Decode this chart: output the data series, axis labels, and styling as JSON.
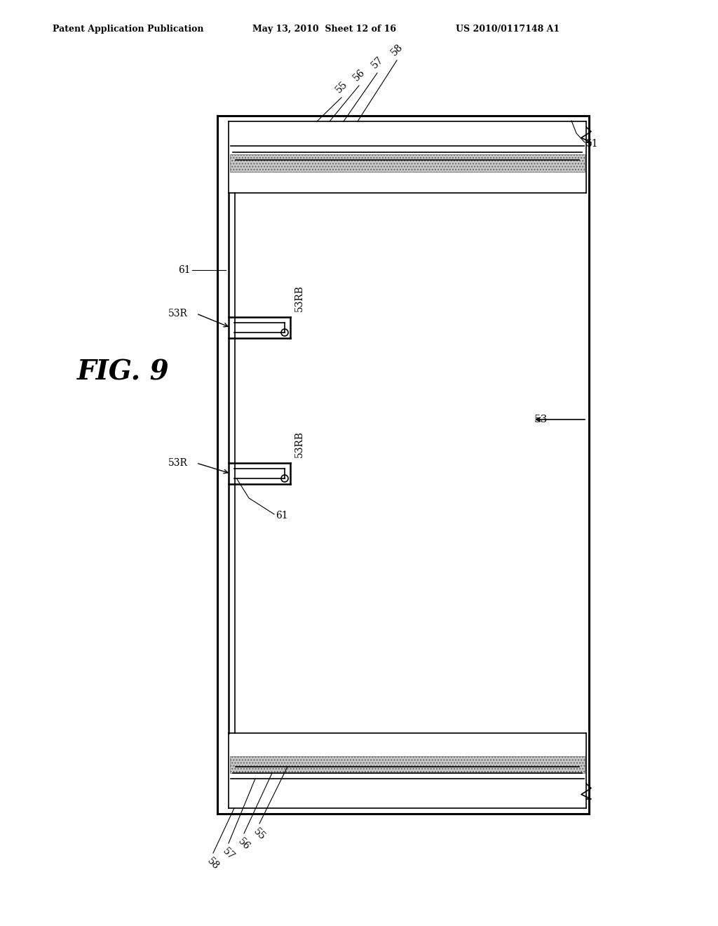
{
  "header_left": "Patent Application Publication",
  "header_mid": "May 13, 2010  Sheet 12 of 16",
  "header_right": "US 2010/0117148 A1",
  "fig_label": "FIG. 9",
  "bg_color": "#ffffff",
  "line_color": "#000000",
  "dot_fill_color": "#c8c8c8"
}
